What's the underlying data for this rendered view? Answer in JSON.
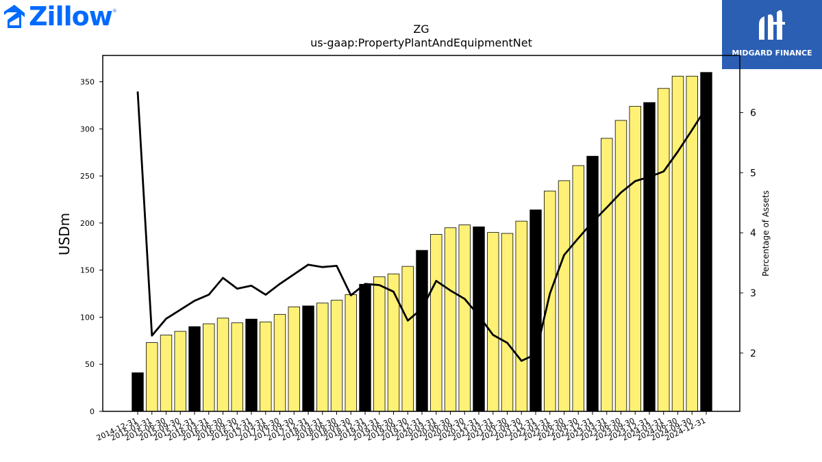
{
  "brand": {
    "name": "Zillow",
    "reg_mark": "®"
  },
  "badge": {
    "name": "MIDGARD FINANCE"
  },
  "colors": {
    "yellow_bar": "#fff176",
    "black_bar": "#000000",
    "line": "#000000",
    "brand": "#006aff",
    "badge": "#2b5fb4"
  },
  "chart_data": {
    "type": "bar",
    "title": "ZG",
    "subtitle": "us-gaap:PropertyPlantAndEquipmentNet",
    "ylabel": "USDm",
    "y2label": "Percentage of Assets",
    "ylim": [
      0,
      378
    ],
    "y2lim": [
      1.03,
      6.95
    ],
    "yticks": [
      0,
      50,
      100,
      150,
      200,
      250,
      300,
      350
    ],
    "y2ticks": [
      2,
      3,
      4,
      5,
      6
    ],
    "grid": false,
    "categories": [
      "2014-12-31",
      "2015-03-31",
      "2015-06-30",
      "2015-09-30",
      "2015-12-31",
      "2016-03-31",
      "2016-06-30",
      "2016-09-30",
      "2016-12-31",
      "2017-03-31",
      "2017-06-30",
      "2017-09-30",
      "2017-12-31",
      "2018-03-31",
      "2018-06-30",
      "2018-09-30",
      "2018-12-31",
      "2019-03-31",
      "2019-06-30",
      "2019-09-30",
      "2019-12-31",
      "2020-03-31",
      "2020-06-30",
      "2020-09-30",
      "2020-12-31",
      "2021-03-31",
      "2021-06-30",
      "2021-09-30",
      "2021-12-31",
      "2022-03-31",
      "2022-06-30",
      "2022-09-30",
      "2022-12-31",
      "2023-03-31",
      "2023-06-30",
      "2023-09-30",
      "2023-12-31",
      "2024-03-31",
      "2024-06-30",
      "2024-09-30",
      "2024-12-31"
    ],
    "series": [
      {
        "type": "bar",
        "values": [
          41,
          73,
          81,
          85,
          90,
          93,
          99,
          94,
          98,
          95,
          103,
          111,
          112,
          115,
          118,
          124,
          135,
          143,
          146,
          154,
          171,
          188,
          195,
          198,
          196,
          190,
          189,
          202,
          214,
          234,
          245,
          261,
          271,
          290,
          309,
          324,
          328,
          343,
          356,
          356,
          360
        ],
        "highlight_year_end": true
      },
      {
        "type": "line",
        "axis": "right",
        "values": [
          6.35,
          2.29,
          2.57,
          2.72,
          2.87,
          2.97,
          3.25,
          3.07,
          3.12,
          2.97,
          3.15,
          3.31,
          3.47,
          3.43,
          3.45,
          2.96,
          3.15,
          3.13,
          3.02,
          2.54,
          2.74,
          3.2,
          3.04,
          2.9,
          2.62,
          2.3,
          2.17,
          1.87,
          1.98,
          2.99,
          3.63,
          3.91,
          4.18,
          4.42,
          4.67,
          4.86,
          4.93,
          5.02,
          5.35,
          5.71,
          6.08
        ]
      }
    ]
  }
}
